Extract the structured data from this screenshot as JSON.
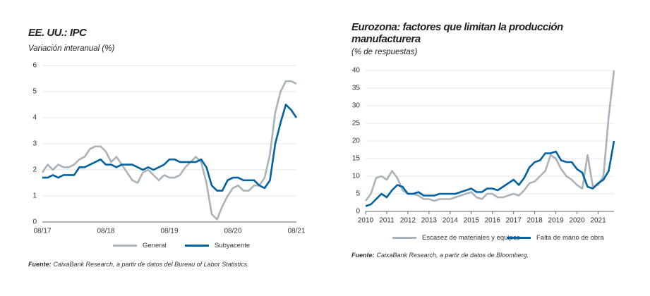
{
  "chart_data": [
    {
      "type": "line",
      "title": "EE. UU.: IPC",
      "subtitle": "Variación interanual (%)",
      "categories": [
        "08/17",
        null,
        null,
        null,
        null,
        null,
        null,
        null,
        null,
        null,
        null,
        null,
        "08/18",
        null,
        null,
        null,
        null,
        null,
        null,
        null,
        null,
        null,
        null,
        null,
        "08/19",
        null,
        null,
        null,
        null,
        null,
        null,
        null,
        null,
        null,
        null,
        null,
        "08/20",
        null,
        null,
        null,
        null,
        null,
        null,
        null,
        null,
        null,
        null,
        null,
        "08/21"
      ],
      "series": [
        {
          "name": "General",
          "color": "#a9b3b9",
          "values": [
            1.9,
            2.2,
            2.0,
            2.2,
            2.1,
            2.1,
            2.2,
            2.4,
            2.5,
            2.8,
            2.9,
            2.9,
            2.7,
            2.3,
            2.5,
            2.2,
            1.9,
            1.6,
            1.5,
            1.9,
            2.0,
            1.8,
            1.6,
            1.8,
            1.7,
            1.7,
            1.8,
            2.1,
            2.3,
            2.5,
            2.3,
            1.5,
            0.3,
            0.1,
            0.6,
            1.0,
            1.3,
            1.4,
            1.2,
            1.2,
            1.4,
            1.4,
            1.7,
            2.6,
            4.2,
            5.0,
            5.4,
            5.4,
            5.3
          ]
        },
        {
          "name": "Subyacente",
          "color": "#0062a1",
          "values": [
            1.7,
            1.7,
            1.8,
            1.7,
            1.8,
            1.8,
            1.8,
            2.1,
            2.1,
            2.2,
            2.3,
            2.4,
            2.2,
            2.2,
            2.1,
            2.2,
            2.2,
            2.2,
            2.1,
            2.0,
            2.1,
            2.0,
            2.1,
            2.2,
            2.4,
            2.4,
            2.3,
            2.3,
            2.3,
            2.3,
            2.4,
            2.1,
            1.4,
            1.2,
            1.2,
            1.6,
            1.7,
            1.7,
            1.6,
            1.6,
            1.6,
            1.4,
            1.3,
            1.6,
            3.0,
            3.8,
            4.5,
            4.3,
            4.0
          ]
        }
      ],
      "ylim": [
        0,
        6
      ],
      "yticks": [
        0,
        1,
        2,
        3,
        4,
        5,
        6
      ],
      "grid": true,
      "source": "Fuente:",
      "source_text": "CaixaBank Research, a partir de datos del Bureau of Labor Statistics."
    },
    {
      "type": "line",
      "title": "Eurozona: factores que limitan la producción manufacturera",
      "subtitle": "(% de respuestas)",
      "x": [
        2010,
        2010.25,
        2010.5,
        2010.75,
        2011,
        2011.25,
        2011.5,
        2011.75,
        2012,
        2012.25,
        2012.5,
        2012.75,
        2013,
        2013.25,
        2013.5,
        2013.75,
        2014,
        2014.25,
        2014.5,
        2014.75,
        2015,
        2015.25,
        2015.5,
        2015.75,
        2016,
        2016.25,
        2016.5,
        2016.75,
        2017,
        2017.25,
        2017.5,
        2017.75,
        2018,
        2018.25,
        2018.5,
        2018.75,
        2019,
        2019.25,
        2019.5,
        2019.75,
        2020,
        2020.25,
        2020.5,
        2020.75,
        2021,
        2021.25,
        2021.5,
        2021.75
      ],
      "series": [
        {
          "name": "Escasez de materiales y equipos",
          "color": "#a9b3b9",
          "values": [
            3,
            5,
            9.5,
            10,
            9,
            11.5,
            9.5,
            6,
            5,
            5,
            4.5,
            3.5,
            3.5,
            3,
            3.5,
            3.5,
            3.5,
            4,
            4.5,
            5,
            5.5,
            4,
            3.5,
            5,
            5,
            4,
            4,
            4.5,
            5,
            4.5,
            6,
            8,
            8.5,
            10,
            11.5,
            16,
            15,
            12,
            10,
            9,
            7.5,
            6.5,
            16,
            7,
            7.5,
            10,
            27,
            40
          ]
        },
        {
          "name": "Falta de mano de obra",
          "color": "#0062a1",
          "values": [
            1.5,
            2,
            3.5,
            5,
            4,
            6,
            7.5,
            7,
            5,
            5,
            5.5,
            4.5,
            4.5,
            4.5,
            5,
            5,
            5,
            5,
            5.5,
            6,
            6.5,
            5.5,
            5.5,
            6.5,
            6.5,
            6,
            7,
            8,
            9,
            7.5,
            9.5,
            12.5,
            14,
            14.5,
            16.5,
            16.5,
            17,
            14.5,
            14,
            14,
            12,
            11,
            7,
            6.5,
            8,
            9,
            11.5,
            20
          ]
        }
      ],
      "xlim": [
        2010,
        2021.75
      ],
      "xticks": [
        2010,
        2011,
        2012,
        2013,
        2014,
        2015,
        2016,
        2017,
        2018,
        2019,
        2020,
        2021
      ],
      "ylim": [
        0,
        40
      ],
      "yticks": [
        0,
        5,
        10,
        15,
        20,
        25,
        30,
        35,
        40
      ],
      "grid": true,
      "source": "Fuente:",
      "source_text": "CaixaBank Research, a partir de datos de Bloomberg."
    }
  ]
}
